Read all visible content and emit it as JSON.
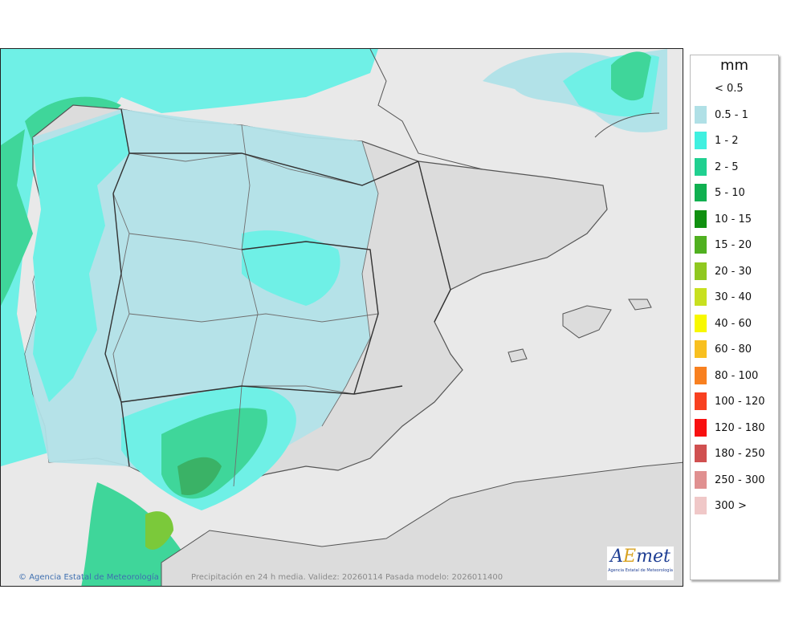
{
  "map": {
    "credit_text": "Agencia Estatal de Meteorología",
    "caption": "Precipitación en 24 h media. Validez: 20260114 Pasada modelo: 2026011400",
    "logo": {
      "word": "AEmet",
      "subtitle": "Agencia Estatal de Meteorología"
    },
    "colors": {
      "land": "#dcdcdc",
      "sea": "#e9e9e9",
      "band_05_1": "#b2e2e8",
      "band_1_2": "#6ff0e6",
      "band_2_5": "#3fd69a",
      "band_5_10": "#3ab266",
      "band_15_20": "#7bc93a",
      "border": "#555555"
    }
  },
  "legend": {
    "unit": "mm",
    "items": [
      {
        "label": "< 0.5",
        "color": ""
      },
      {
        "label": "0.5 - 1",
        "color": "#b0e0e6"
      },
      {
        "label": "1 - 2",
        "color": "#40f0e0"
      },
      {
        "label": "2 - 5",
        "color": "#20d090"
      },
      {
        "label": "5 - 10",
        "color": "#10b050"
      },
      {
        "label": "10 - 15",
        "color": "#109010"
      },
      {
        "label": "15 - 20",
        "color": "#50b020"
      },
      {
        "label": "20 - 30",
        "color": "#90c820"
      },
      {
        "label": "30 - 40",
        "color": "#c8e020"
      },
      {
        "label": "40 - 60",
        "color": "#f8f800"
      },
      {
        "label": "60 - 80",
        "color": "#f8c020"
      },
      {
        "label": "80 - 100",
        "color": "#f88020"
      },
      {
        "label": "100 - 120",
        "color": "#f84020"
      },
      {
        "label": "120 - 180",
        "color": "#f81010"
      },
      {
        "label": "180 - 250",
        "color": "#d05050"
      },
      {
        "label": "250 - 300",
        "color": "#e09090"
      },
      {
        "label": "300 >",
        "color": "#f0c8c8"
      }
    ]
  }
}
